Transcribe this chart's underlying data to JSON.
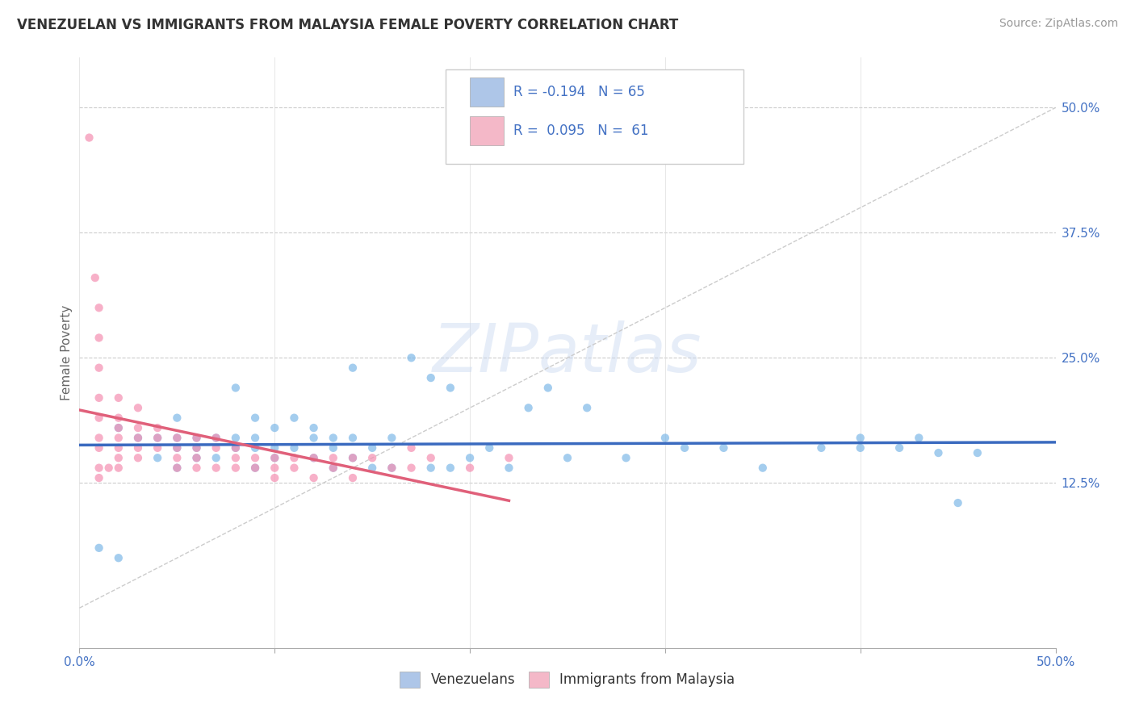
{
  "title": "VENEZUELAN VS IMMIGRANTS FROM MALAYSIA FEMALE POVERTY CORRELATION CHART",
  "source": "Source: ZipAtlas.com",
  "ylabel": "Female Poverty",
  "right_yticks": [
    "50.0%",
    "37.5%",
    "25.0%",
    "12.5%"
  ],
  "right_ytick_vals": [
    0.5,
    0.375,
    0.25,
    0.125
  ],
  "legend1_color": "#aec6e8",
  "legend2_color": "#f4b8c8",
  "watermark_text": "ZIPatlas",
  "blue_color": "#7eb8e8",
  "pink_color": "#f48fb1",
  "blue_line_color": "#3a6abf",
  "pink_line_color": "#e0607a",
  "xlim": [
    0.0,
    0.5
  ],
  "ylim": [
    -0.04,
    0.55
  ],
  "xtick_positions": [
    0.0,
    0.1,
    0.2,
    0.3,
    0.4,
    0.5
  ],
  "grid_ytick_vals": [
    0.5,
    0.375,
    0.25,
    0.125
  ],
  "blue_scatter_x": [
    0.01,
    0.02,
    0.02,
    0.03,
    0.04,
    0.04,
    0.05,
    0.05,
    0.05,
    0.05,
    0.06,
    0.06,
    0.06,
    0.07,
    0.07,
    0.08,
    0.08,
    0.08,
    0.09,
    0.09,
    0.09,
    0.09,
    0.1,
    0.1,
    0.1,
    0.11,
    0.11,
    0.12,
    0.12,
    0.12,
    0.13,
    0.13,
    0.13,
    0.14,
    0.14,
    0.14,
    0.15,
    0.15,
    0.16,
    0.16,
    0.17,
    0.18,
    0.18,
    0.19,
    0.19,
    0.2,
    0.21,
    0.22,
    0.23,
    0.24,
    0.25,
    0.26,
    0.28,
    0.3,
    0.31,
    0.33,
    0.35,
    0.38,
    0.4,
    0.4,
    0.42,
    0.43,
    0.44,
    0.45,
    0.46
  ],
  "blue_scatter_y": [
    0.06,
    0.05,
    0.18,
    0.17,
    0.15,
    0.17,
    0.14,
    0.16,
    0.17,
    0.19,
    0.15,
    0.16,
    0.17,
    0.15,
    0.17,
    0.16,
    0.17,
    0.22,
    0.14,
    0.16,
    0.17,
    0.19,
    0.15,
    0.16,
    0.18,
    0.16,
    0.19,
    0.15,
    0.17,
    0.18,
    0.14,
    0.16,
    0.17,
    0.15,
    0.17,
    0.24,
    0.14,
    0.16,
    0.14,
    0.17,
    0.25,
    0.14,
    0.23,
    0.14,
    0.22,
    0.15,
    0.16,
    0.14,
    0.2,
    0.22,
    0.15,
    0.2,
    0.15,
    0.17,
    0.16,
    0.16,
    0.14,
    0.16,
    0.16,
    0.17,
    0.16,
    0.17,
    0.155,
    0.105,
    0.155
  ],
  "pink_scatter_x": [
    0.005,
    0.008,
    0.01,
    0.01,
    0.01,
    0.01,
    0.01,
    0.01,
    0.01,
    0.01,
    0.01,
    0.015,
    0.02,
    0.02,
    0.02,
    0.02,
    0.02,
    0.02,
    0.02,
    0.03,
    0.03,
    0.03,
    0.03,
    0.03,
    0.04,
    0.04,
    0.04,
    0.05,
    0.05,
    0.05,
    0.05,
    0.06,
    0.06,
    0.06,
    0.06,
    0.07,
    0.07,
    0.07,
    0.08,
    0.08,
    0.08,
    0.09,
    0.09,
    0.1,
    0.1,
    0.1,
    0.11,
    0.11,
    0.12,
    0.12,
    0.13,
    0.13,
    0.14,
    0.14,
    0.15,
    0.16,
    0.17,
    0.17,
    0.18,
    0.2,
    0.22
  ],
  "pink_scatter_y": [
    0.47,
    0.33,
    0.3,
    0.27,
    0.24,
    0.21,
    0.19,
    0.17,
    0.16,
    0.14,
    0.13,
    0.14,
    0.21,
    0.19,
    0.18,
    0.17,
    0.16,
    0.15,
    0.14,
    0.2,
    0.18,
    0.17,
    0.16,
    0.15,
    0.18,
    0.17,
    0.16,
    0.17,
    0.16,
    0.15,
    0.14,
    0.17,
    0.16,
    0.15,
    0.14,
    0.17,
    0.16,
    0.14,
    0.16,
    0.15,
    0.14,
    0.15,
    0.14,
    0.15,
    0.14,
    0.13,
    0.15,
    0.14,
    0.15,
    0.13,
    0.15,
    0.14,
    0.15,
    0.13,
    0.15,
    0.14,
    0.16,
    0.14,
    0.15,
    0.14,
    0.15
  ]
}
